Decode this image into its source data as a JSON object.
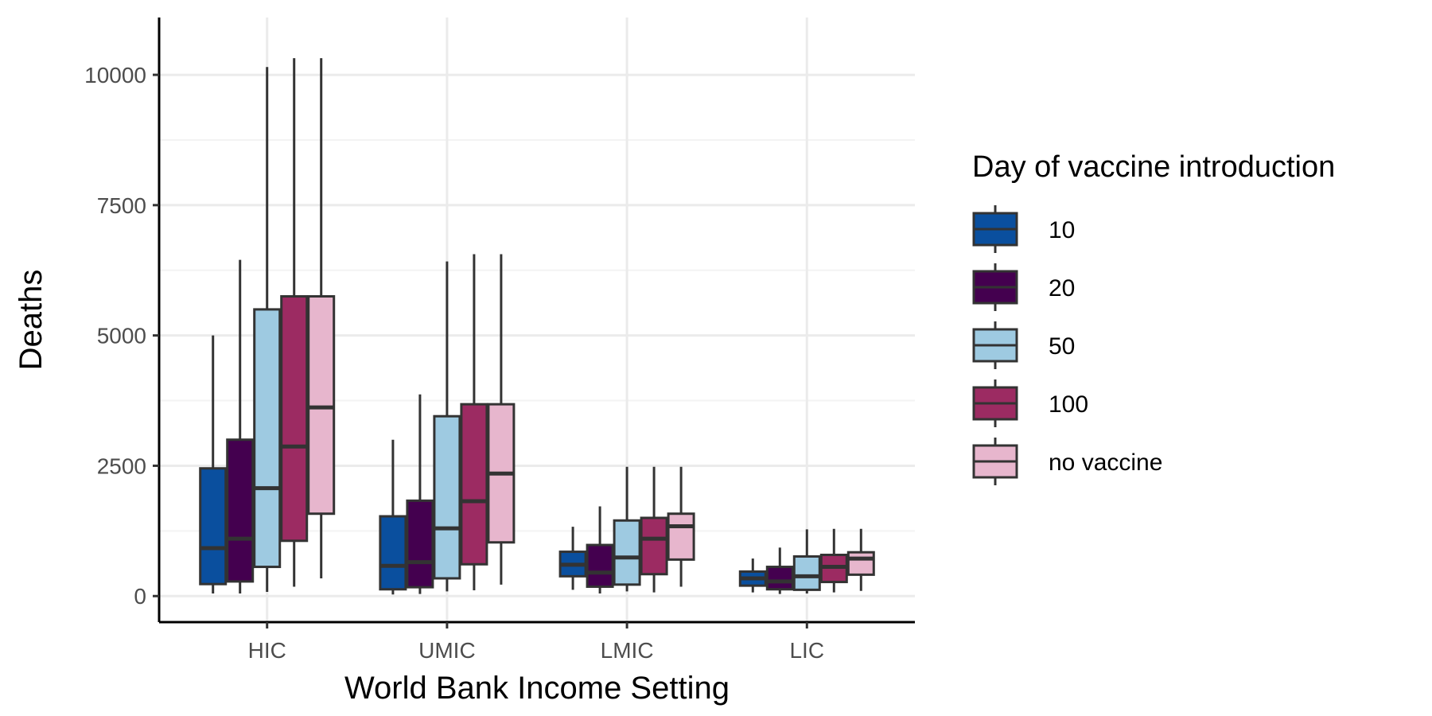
{
  "chart_data": {
    "type": "boxplot",
    "xlabel": "World Bank Income Setting",
    "ylabel": "Deaths",
    "categories": [
      "HIC",
      "UMIC",
      "LMIC",
      "LIC"
    ],
    "ylim": [
      -500,
      11100
    ],
    "yticks": [
      0,
      2500,
      5000,
      7500,
      10000
    ],
    "grid": true,
    "legend": {
      "title": "Day of vaccine introduction",
      "position": "right"
    },
    "series": [
      {
        "name": "10",
        "color": "#0a4f9e",
        "boxes": [
          {
            "min": 50,
            "q1": 230,
            "median": 920,
            "q3": 2450,
            "max": 5000
          },
          {
            "min": 30,
            "q1": 130,
            "median": 580,
            "q3": 1530,
            "max": 3000
          },
          {
            "min": 120,
            "q1": 380,
            "median": 600,
            "q3": 850,
            "max": 1330
          },
          {
            "min": 70,
            "q1": 200,
            "median": 340,
            "q3": 470,
            "max": 720
          }
        ]
      },
      {
        "name": "20",
        "color": "#44004f",
        "boxes": [
          {
            "min": 50,
            "q1": 280,
            "median": 1100,
            "q3": 3000,
            "max": 6450
          },
          {
            "min": 40,
            "q1": 170,
            "median": 650,
            "q3": 1830,
            "max": 3870
          },
          {
            "min": 50,
            "q1": 180,
            "median": 450,
            "q3": 980,
            "max": 1720
          },
          {
            "min": 40,
            "q1": 130,
            "median": 280,
            "q3": 560,
            "max": 930
          }
        ]
      },
      {
        "name": "50",
        "color": "#9ecae1",
        "boxes": [
          {
            "min": 80,
            "q1": 560,
            "median": 2070,
            "q3": 5500,
            "max": 10150
          },
          {
            "min": 90,
            "q1": 340,
            "median": 1300,
            "q3": 3450,
            "max": 6420
          },
          {
            "min": 90,
            "q1": 220,
            "median": 740,
            "q3": 1450,
            "max": 2480
          },
          {
            "min": 50,
            "q1": 120,
            "median": 380,
            "q3": 760,
            "max": 1280
          }
        ]
      },
      {
        "name": "100",
        "color": "#9c2b62",
        "boxes": [
          {
            "min": 180,
            "q1": 1060,
            "median": 2870,
            "q3": 5750,
            "max": 10320
          },
          {
            "min": 110,
            "q1": 610,
            "median": 1820,
            "q3": 3680,
            "max": 6560
          },
          {
            "min": 70,
            "q1": 420,
            "median": 1100,
            "q3": 1500,
            "max": 2480
          },
          {
            "min": 70,
            "q1": 270,
            "median": 560,
            "q3": 790,
            "max": 1290
          }
        ]
      },
      {
        "name": "no vaccine",
        "color": "#e7b6cd",
        "boxes": [
          {
            "min": 340,
            "q1": 1580,
            "median": 3620,
            "q3": 5750,
            "max": 10320
          },
          {
            "min": 220,
            "q1": 1030,
            "median": 2350,
            "q3": 3680,
            "max": 6560
          },
          {
            "min": 180,
            "q1": 700,
            "median": 1340,
            "q3": 1580,
            "max": 2480
          },
          {
            "min": 100,
            "q1": 410,
            "median": 720,
            "q3": 840,
            "max": 1290
          }
        ]
      }
    ]
  }
}
